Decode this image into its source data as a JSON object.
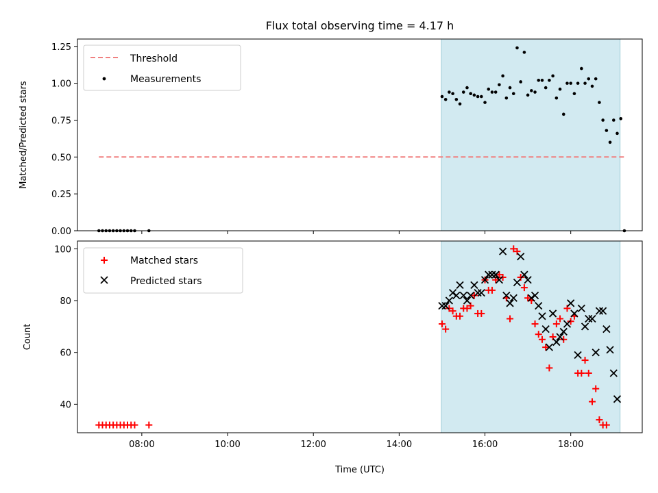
{
  "chart_data": [
    {
      "type": "scatter",
      "title": "Flux total observing time = 4.17 h",
      "xlabel": "",
      "ylabel": "Matched/Predicted stars",
      "xlim": [
        "06:30",
        "19:40"
      ],
      "ylim": [
        0,
        1.3
      ],
      "yticks": [
        "0.00",
        "0.25",
        "0.50",
        "0.75",
        "1.00",
        "1.25"
      ],
      "shaded_region": {
        "start": "14:59",
        "end": "19:09",
        "color": "#add8e6"
      },
      "legend_position": "top-left",
      "legend": [
        {
          "label": "Threshold",
          "marker": "dashed-line",
          "color": "#f08080"
        },
        {
          "label": "Measurements",
          "marker": "dot",
          "color": "#000000"
        }
      ],
      "threshold": {
        "value": 0.5,
        "x_start": "07:00",
        "x_end": "19:15"
      },
      "series": [
        {
          "name": "Measurements",
          "points": [
            [
              "07:00",
              0
            ],
            [
              "07:05",
              0
            ],
            [
              "07:10",
              0
            ],
            [
              "07:15",
              0
            ],
            [
              "07:20",
              0
            ],
            [
              "07:25",
              0
            ],
            [
              "07:30",
              0
            ],
            [
              "07:35",
              0
            ],
            [
              "07:40",
              0
            ],
            [
              "07:45",
              0
            ],
            [
              "07:50",
              0
            ],
            [
              "08:10",
              0
            ],
            [
              "15:00",
              0.91
            ],
            [
              "15:05",
              0.89
            ],
            [
              "15:10",
              0.94
            ],
            [
              "15:15",
              0.93
            ],
            [
              "15:20",
              0.89
            ],
            [
              "15:25",
              0.86
            ],
            [
              "15:30",
              0.94
            ],
            [
              "15:35",
              0.97
            ],
            [
              "15:40",
              0.93
            ],
            [
              "15:45",
              0.92
            ],
            [
              "15:50",
              0.91
            ],
            [
              "15:55",
              0.91
            ],
            [
              "16:00",
              0.87
            ],
            [
              "16:05",
              0.96
            ],
            [
              "16:10",
              0.94
            ],
            [
              "16:15",
              0.94
            ],
            [
              "16:20",
              0.99
            ],
            [
              "16:25",
              1.05
            ],
            [
              "16:30",
              0.9
            ],
            [
              "16:35",
              0.97
            ],
            [
              "16:40",
              0.93
            ],
            [
              "16:45",
              1.24
            ],
            [
              "16:50",
              1.01
            ],
            [
              "16:55",
              1.21
            ],
            [
              "17:00",
              0.92
            ],
            [
              "17:05",
              0.95
            ],
            [
              "17:10",
              0.94
            ],
            [
              "17:15",
              1.02
            ],
            [
              "17:20",
              1.02
            ],
            [
              "17:25",
              0.97
            ],
            [
              "17:30",
              1.02
            ],
            [
              "17:35",
              1.05
            ],
            [
              "17:40",
              0.9
            ],
            [
              "17:45",
              0.96
            ],
            [
              "17:50",
              0.79
            ],
            [
              "17:55",
              1.0
            ],
            [
              "18:00",
              1.0
            ],
            [
              "18:05",
              0.93
            ],
            [
              "18:10",
              1.0
            ],
            [
              "18:15",
              1.1
            ],
            [
              "18:20",
              1.0
            ],
            [
              "18:25",
              1.03
            ],
            [
              "18:30",
              0.98
            ],
            [
              "18:35",
              1.03
            ],
            [
              "18:40",
              0.87
            ],
            [
              "18:45",
              0.75
            ],
            [
              "18:50",
              0.68
            ],
            [
              "18:55",
              0.6
            ],
            [
              "19:00",
              0.75
            ],
            [
              "19:05",
              0.66
            ],
            [
              "19:10",
              0.76
            ],
            [
              "19:15",
              0
            ]
          ]
        }
      ]
    },
    {
      "type": "scatter",
      "title": "",
      "xlabel": "Time (UTC)",
      "ylabel": "Count",
      "xlim": [
        "06:30",
        "19:40"
      ],
      "ylim": [
        29,
        103
      ],
      "xticks": [
        "08:00",
        "10:00",
        "12:00",
        "14:00",
        "16:00",
        "18:00"
      ],
      "yticks": [
        "40",
        "60",
        "80",
        "100"
      ],
      "shaded_region": {
        "start": "14:59",
        "end": "19:09",
        "color": "#add8e6"
      },
      "legend_position": "top-left",
      "legend": [
        {
          "label": "Matched stars",
          "marker": "plus",
          "color": "#ff0000"
        },
        {
          "label": "Predicted stars",
          "marker": "x",
          "color": "#000000"
        }
      ],
      "series": [
        {
          "name": "Matched stars",
          "points": [
            [
              "07:00",
              32
            ],
            [
              "07:05",
              32
            ],
            [
              "07:10",
              32
            ],
            [
              "07:15",
              32
            ],
            [
              "07:20",
              32
            ],
            [
              "07:25",
              32
            ],
            [
              "07:30",
              32
            ],
            [
              "07:35",
              32
            ],
            [
              "07:40",
              32
            ],
            [
              "07:45",
              32
            ],
            [
              "07:50",
              32
            ],
            [
              "08:10",
              32
            ],
            [
              "15:00",
              71
            ],
            [
              "15:05",
              69
            ],
            [
              "15:10",
              77
            ],
            [
              "15:15",
              76
            ],
            [
              "15:20",
              74
            ],
            [
              "15:25",
              74
            ],
            [
              "15:30",
              77
            ],
            [
              "15:35",
              77
            ],
            [
              "15:40",
              78
            ],
            [
              "15:45",
              82
            ],
            [
              "15:50",
              75
            ],
            [
              "15:55",
              75
            ],
            [
              "16:00",
              88
            ],
            [
              "16:05",
              84
            ],
            [
              "16:10",
              84
            ],
            [
              "16:15",
              88
            ],
            [
              "16:20",
              90
            ],
            [
              "16:25",
              89
            ],
            [
              "16:30",
              81
            ],
            [
              "16:35",
              73
            ],
            [
              "16:40",
              100
            ],
            [
              "16:45",
              99
            ],
            [
              "16:50",
              89
            ],
            [
              "16:55",
              85
            ],
            [
              "17:00",
              81
            ],
            [
              "17:05",
              80
            ],
            [
              "17:10",
              71
            ],
            [
              "17:15",
              67
            ],
            [
              "17:20",
              65
            ],
            [
              "17:25",
              62
            ],
            [
              "17:30",
              54
            ],
            [
              "17:35",
              66
            ],
            [
              "17:40",
              71
            ],
            [
              "17:45",
              73
            ],
            [
              "17:50",
              65
            ],
            [
              "17:55",
              77
            ],
            [
              "18:00",
              72
            ],
            [
              "18:05",
              74
            ],
            [
              "18:10",
              52
            ],
            [
              "18:15",
              52
            ],
            [
              "18:20",
              57
            ],
            [
              "18:25",
              52
            ],
            [
              "18:30",
              41
            ],
            [
              "18:35",
              46
            ],
            [
              "18:40",
              34
            ],
            [
              "18:45",
              32
            ],
            [
              "18:50",
              32
            ]
          ]
        },
        {
          "name": "Predicted stars",
          "points": [
            [
              "15:00",
              78
            ],
            [
              "15:05",
              78
            ],
            [
              "15:10",
              80
            ],
            [
              "15:15",
              83
            ],
            [
              "15:20",
              82
            ],
            [
              "15:25",
              86
            ],
            [
              "15:30",
              82
            ],
            [
              "15:35",
              80
            ],
            [
              "15:40",
              82
            ],
            [
              "15:45",
              86
            ],
            [
              "15:50",
              83
            ],
            [
              "15:55",
              83
            ],
            [
              "16:00",
              88
            ],
            [
              "16:05",
              90
            ],
            [
              "16:10",
              90
            ],
            [
              "16:15",
              90
            ],
            [
              "16:20",
              88
            ],
            [
              "16:25",
              99
            ],
            [
              "16:30",
              82
            ],
            [
              "16:35",
              79
            ],
            [
              "16:40",
              81
            ],
            [
              "16:45",
              87
            ],
            [
              "16:50",
              97
            ],
            [
              "16:55",
              90
            ],
            [
              "17:00",
              88
            ],
            [
              "17:05",
              81
            ],
            [
              "17:10",
              82
            ],
            [
              "17:15",
              78
            ],
            [
              "17:20",
              74
            ],
            [
              "17:25",
              69
            ],
            [
              "17:30",
              62
            ],
            [
              "17:35",
              75
            ],
            [
              "17:40",
              64
            ],
            [
              "17:45",
              66
            ],
            [
              "17:50",
              68
            ],
            [
              "17:55",
              71
            ],
            [
              "18:00",
              79
            ],
            [
              "18:05",
              75
            ],
            [
              "18:10",
              59
            ],
            [
              "18:15",
              77
            ],
            [
              "18:20",
              70
            ],
            [
              "18:25",
              73
            ],
            [
              "18:30",
              73
            ],
            [
              "18:35",
              60
            ],
            [
              "18:40",
              76
            ],
            [
              "18:45",
              76
            ],
            [
              "18:50",
              69
            ],
            [
              "18:55",
              61
            ],
            [
              "19:00",
              52
            ],
            [
              "19:05",
              42
            ]
          ]
        }
      ]
    }
  ]
}
